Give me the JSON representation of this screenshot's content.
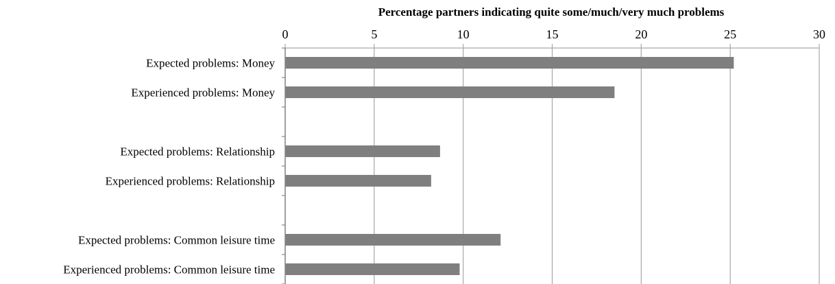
{
  "chart_data": {
    "type": "bar",
    "orientation": "horizontal",
    "title": "",
    "xlabel": "Percentage partners indicating quite some/much/very much problems",
    "ylabel": "",
    "xlim": [
      0,
      30
    ],
    "xticks": [
      0,
      5,
      10,
      15,
      20,
      25,
      30
    ],
    "x_axis_position": "top",
    "grid": true,
    "legend": "none",
    "bar_color": "#7f7f7f",
    "grid_color": "#a6a6a6",
    "categories": [
      "Expected problems: Money",
      "Experienced problems: Money",
      "",
      "Expected problems: Relationship",
      "Experienced problems: Relationship",
      "",
      "Expected problems: Common leisure time",
      "Experienced problems: Common leisure time"
    ],
    "values": [
      25.2,
      18.5,
      null,
      8.7,
      8.2,
      null,
      12.1,
      9.8
    ]
  }
}
